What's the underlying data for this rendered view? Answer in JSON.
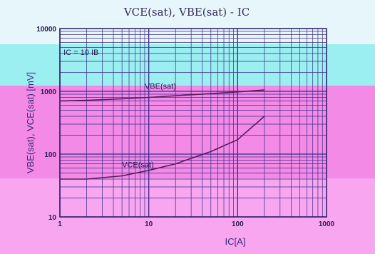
{
  "chart_data": {
    "type": "line",
    "title": "VCE(sat), VBE(sat) - IC",
    "xlabel": "IC[A]",
    "ylabel": "VBE(sat), VCE(sat) [mV]",
    "x_scale": "log",
    "y_scale": "log",
    "xlim": [
      1,
      1000
    ],
    "ylim": [
      10,
      10000
    ],
    "x_ticks": [
      "1",
      "10",
      "100",
      "1000"
    ],
    "y_ticks": [
      "10000",
      "1000",
      "100",
      "10"
    ],
    "grid": true,
    "legend": "none",
    "annotations": [
      {
        "text": "IC = 10 IB",
        "x": 1.1,
        "y": 3800
      },
      {
        "text": "VBE(sat)",
        "x": 9,
        "y": 1100
      },
      {
        "text": "VCE(sat)",
        "x": 5,
        "y": 62
      }
    ],
    "series": [
      {
        "name": "VBE(sat)",
        "x": [
          1,
          2,
          5,
          10,
          20,
          50,
          100,
          200
        ],
        "y": [
          700,
          720,
          760,
          800,
          850,
          920,
          980,
          1050
        ]
      },
      {
        "name": "VCE(sat)",
        "x": [
          1,
          2,
          5,
          10,
          20,
          50,
          100,
          200
        ],
        "y": [
          40,
          40,
          45,
          55,
          70,
          110,
          170,
          400
        ]
      }
    ]
  },
  "colors": {
    "curve": "#5a1a5a",
    "grid": "#3a2a88",
    "band_top": "#e6f6fb",
    "band_cyan": "#9beff0",
    "band_pink": "#f28ae6"
  }
}
